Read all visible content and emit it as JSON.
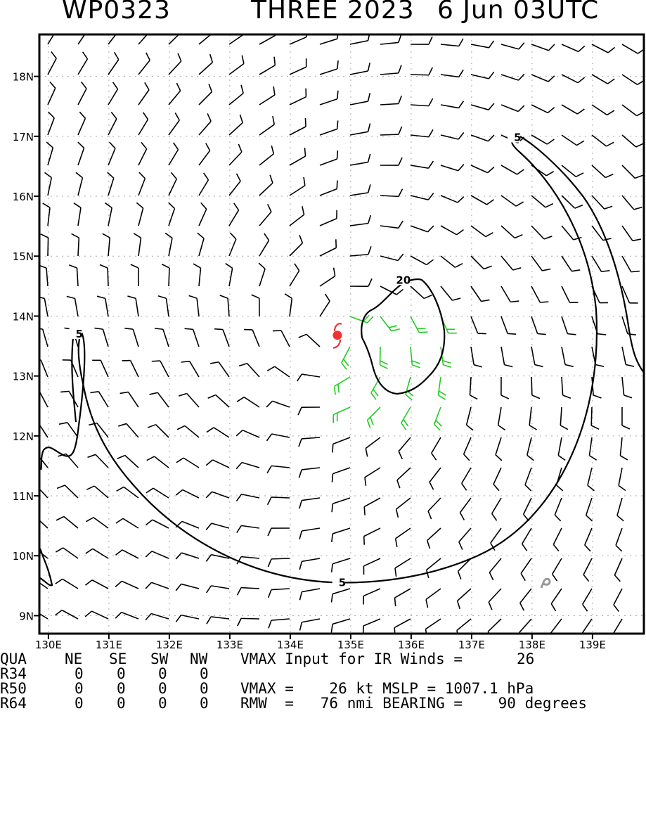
{
  "title": {
    "storm_id": "WP0323",
    "storm_name": "THREE 2023",
    "datetime": "6 Jun 03UTC"
  },
  "map": {
    "lon_labels": [
      "130E",
      "131E",
      "132E",
      "133E",
      "134E",
      "135E",
      "136E",
      "137E",
      "138E",
      "139E"
    ],
    "lat_labels": [
      "18N",
      "17N",
      "16N",
      "15N",
      "14N",
      "13N",
      "12N",
      "11N",
      "10N",
      "9N"
    ],
    "lon_range": [
      129.85,
      139.85
    ],
    "lat_range": [
      8.7,
      18.7
    ],
    "storm_center": {
      "lon": 134.78,
      "lat": 13.68,
      "color": "#ee3333"
    },
    "contours": [
      {
        "label": "5",
        "label_lon": 137.7,
        "label_lat": 16.98
      },
      {
        "label": "5",
        "label_lon": 130.45,
        "label_lat": 13.7
      },
      {
        "label": "5",
        "label_lon": 134.8,
        "label_lat": 9.55
      },
      {
        "label": "20",
        "label_lon": 135.75,
        "label_lat": 14.6
      }
    ],
    "colors": {
      "barb": "#000000",
      "strong_barb": "#22cc22",
      "contour": "#000000",
      "marker": "#999999"
    }
  },
  "info": {
    "header": {
      "c0": "QUA",
      "c1": "NE",
      "c2": "SE",
      "c3": "SW",
      "c4": "NW",
      "text": "VMAX Input for IR Winds =",
      "value": "26"
    },
    "r34": {
      "label": "R34",
      "ne": "0",
      "se": "0",
      "sw": "0",
      "nw": "0"
    },
    "r50": {
      "label": "R50",
      "ne": "0",
      "se": "0",
      "sw": "0",
      "nw": "0",
      "text": "VMAX =    26 kt MSLP = 1007.1 hPa"
    },
    "r64": {
      "label": "R64",
      "ne": "0",
      "se": "0",
      "sw": "0",
      "nw": "0",
      "text": "RMW  =   76 nmi BEARING =    90 degrees"
    }
  }
}
